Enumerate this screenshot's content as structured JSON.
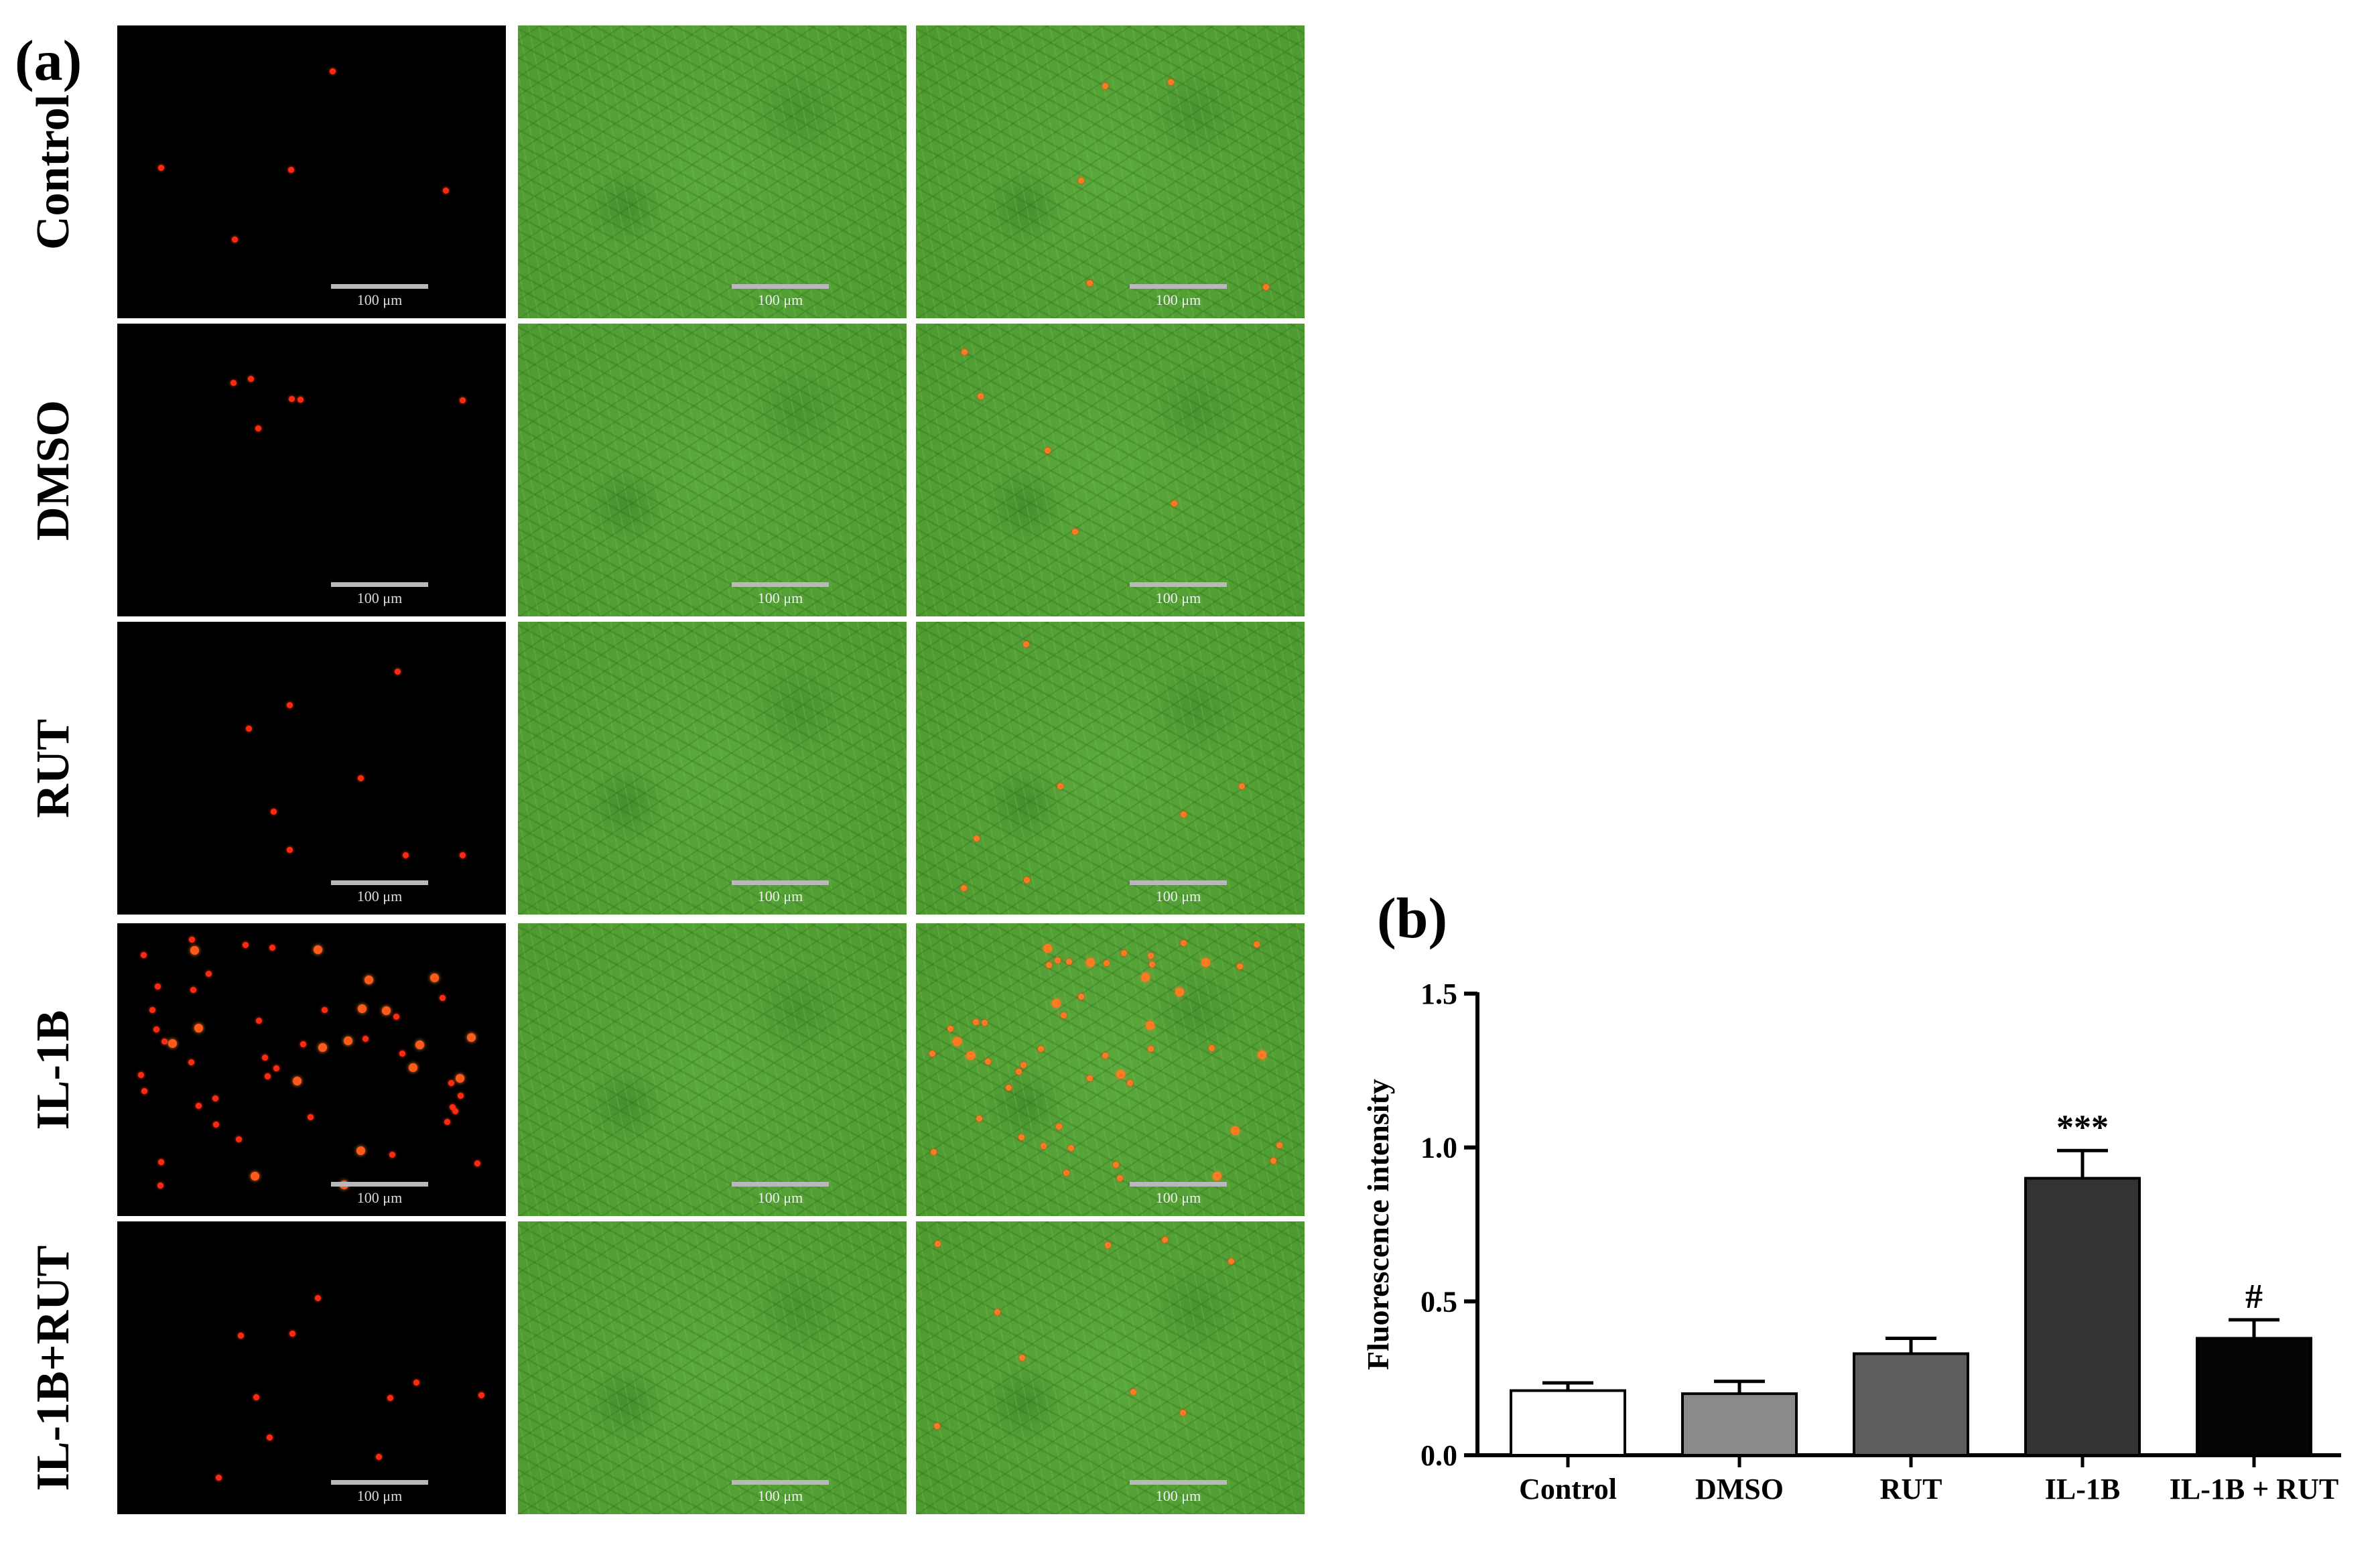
{
  "figure": {
    "panel_a_label": "(a)",
    "panel_b_label": "(b)",
    "scale_bar_label": "100 μm",
    "rows": [
      {
        "label": "Control"
      },
      {
        "label": "DMSO"
      },
      {
        "label": "RUT"
      },
      {
        "label": "IL-1B"
      },
      {
        "label": "IL-1B+RUT"
      }
    ]
  },
  "chart_data": {
    "type": "bar",
    "categories": [
      "Control",
      "DMSO",
      "RUT",
      "IL-1B",
      "IL-1B + RUT"
    ],
    "values": [
      0.21,
      0.2,
      0.33,
      0.9,
      0.38
    ],
    "errors": [
      0.025,
      0.04,
      0.05,
      0.09,
      0.06
    ],
    "bar_colors": [
      "#ffffff",
      "#8a8a8a",
      "#5e5e5e",
      "#333333",
      "#050505"
    ],
    "annotations": [
      "",
      "",
      "",
      "***",
      "#"
    ],
    "ylabel": "Fluorescence intensity",
    "xlabel": "",
    "ylim": [
      0,
      1.5
    ],
    "yticks": [
      0.0,
      0.5,
      1.0,
      1.5
    ],
    "ytick_labels": [
      "0.0",
      "0.5",
      "1.0",
      "1.5"
    ],
    "grid": false
  }
}
